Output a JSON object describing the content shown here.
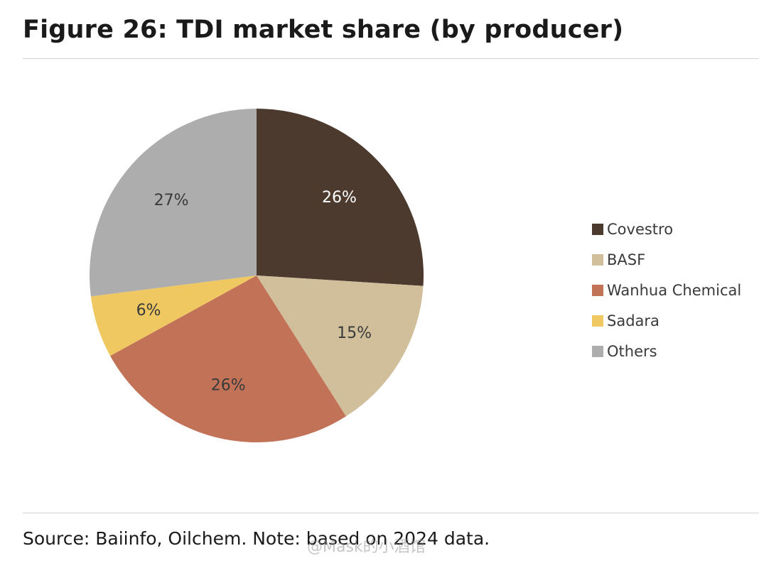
{
  "title": "Figure 26: TDI market share (by producer)",
  "source": "Source: Baiinfo, Oilchem. Note: based on 2024 data.",
  "watermark": "@Mask的小酒馆",
  "chart_data": {
    "type": "pie",
    "title": "Figure 26: TDI market share (by producer)",
    "start_angle_deg": 0,
    "direction": "clockwise",
    "slices": [
      {
        "name": "Covestro",
        "value": 26,
        "label": "26%",
        "color": "#4d3a2e",
        "label_color": "#ffffff"
      },
      {
        "name": "BASF",
        "value": 15,
        "label": "15%",
        "color": "#d1bf9b",
        "label_color": "#3a3a3a"
      },
      {
        "name": "Wanhua Chemical",
        "value": 26,
        "label": "26%",
        "color": "#c27257",
        "label_color": "#3a3a3a"
      },
      {
        "name": "Sadara",
        "value": 6,
        "label": "6%",
        "color": "#efc862",
        "label_color": "#3a3a3a"
      },
      {
        "name": "Others",
        "value": 27,
        "label": "27%",
        "color": "#adadad",
        "label_color": "#3a3a3a"
      }
    ],
    "legend_position": "right"
  }
}
